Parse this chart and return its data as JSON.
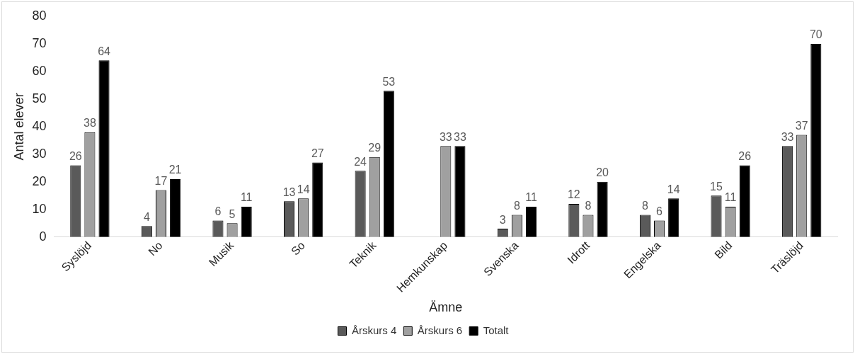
{
  "chart_data": {
    "type": "bar",
    "xlabel": "Ämne",
    "ylabel": "Antal elever",
    "categories": [
      "Syslöjd",
      "No",
      "Musik",
      "So",
      "Teknik",
      "Hemkunskap",
      "Svenska",
      "Idrott",
      "Engelska",
      "Bild",
      "Träslöjd"
    ],
    "series": [
      {
        "name": "Årskurs 4",
        "color": "#5a5a5a",
        "values": [
          26,
          4,
          6,
          13,
          24,
          null,
          3,
          12,
          8,
          15,
          33
        ]
      },
      {
        "name": "Årskurs 6",
        "color": "#a0a0a0",
        "values": [
          38,
          17,
          5,
          14,
          29,
          33,
          8,
          8,
          6,
          11,
          37
        ]
      },
      {
        "name": "Totalt",
        "color": "#000000",
        "values": [
          64,
          21,
          11,
          27,
          53,
          33,
          11,
          20,
          14,
          26,
          70
        ]
      }
    ],
    "ylim": [
      0,
      80
    ],
    "yticks": [
      0,
      10,
      20,
      30,
      40,
      50,
      60,
      70,
      80
    ],
    "data_labels": true,
    "legend": "bottom",
    "grid": false
  }
}
